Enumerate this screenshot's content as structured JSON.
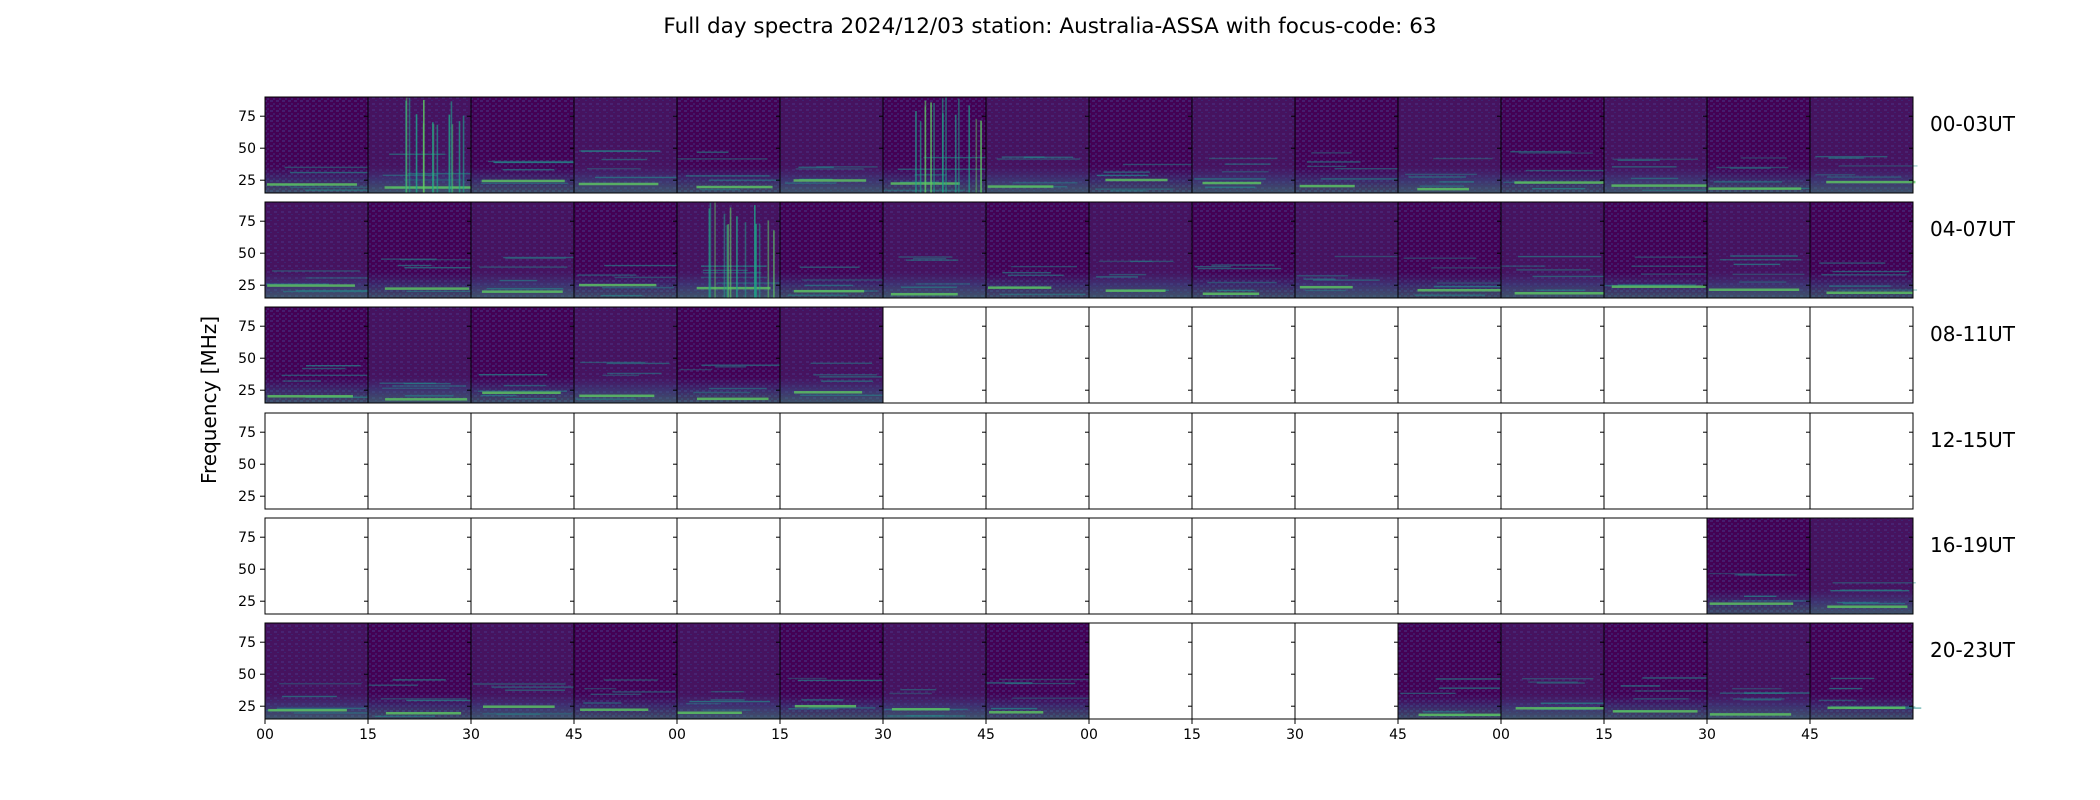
{
  "chart_data": {
    "type": "heatmap",
    "title": "Full day spectra 2024/12/03 station: Australia-ASSA with focus-code: 63",
    "ylabel": "Frequency [MHz]",
    "xlabel": "",
    "ylim": [
      15,
      90
    ],
    "yticks": [
      "75",
      "50",
      "25"
    ],
    "xticks": [
      "00",
      "15",
      "30",
      "45",
      "00",
      "15",
      "30",
      "45",
      "00",
      "15",
      "30",
      "45",
      "00",
      "15",
      "30",
      "45"
    ],
    "colormap": "viridis",
    "colors": {
      "background": "#440154",
      "low": "#3b2a78",
      "mid": "#21918c",
      "high": "#5ec962"
    },
    "rows": [
      {
        "label": "00-03UT",
        "available": [
          1,
          1,
          1,
          1,
          1,
          1,
          1,
          1,
          1,
          1,
          1,
          1,
          1,
          1,
          1,
          1
        ],
        "burst_panels": [
          1,
          6
        ]
      },
      {
        "label": "04-07UT",
        "available": [
          1,
          1,
          1,
          1,
          1,
          1,
          1,
          1,
          1,
          1,
          1,
          1,
          1,
          1,
          1,
          1
        ],
        "burst_panels": [
          4
        ]
      },
      {
        "label": "08-11UT",
        "available": [
          1,
          1,
          1,
          1,
          1,
          1,
          0,
          0,
          0,
          0,
          0,
          0,
          0,
          0,
          0,
          0
        ],
        "burst_panels": []
      },
      {
        "label": "12-15UT",
        "available": [
          0,
          0,
          0,
          0,
          0,
          0,
          0,
          0,
          0,
          0,
          0,
          0,
          0,
          0,
          0,
          0
        ],
        "burst_panels": []
      },
      {
        "label": "16-19UT",
        "available": [
          0,
          0,
          0,
          0,
          0,
          0,
          0,
          0,
          0,
          0,
          0,
          0,
          0,
          0,
          1,
          1
        ],
        "burst_panels": []
      },
      {
        "label": "20-23UT",
        "available": [
          1,
          1,
          1,
          1,
          1,
          1,
          1,
          1,
          0,
          0,
          0,
          1,
          1,
          1,
          1,
          1
        ],
        "burst_panels": []
      }
    ]
  }
}
